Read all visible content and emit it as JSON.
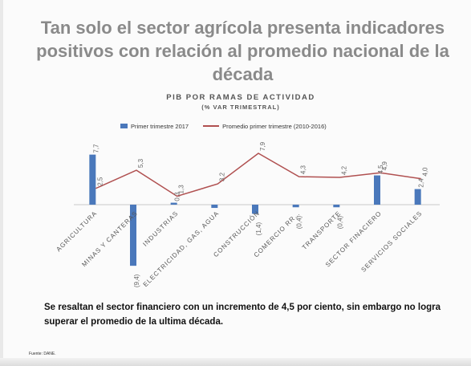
{
  "slide": {
    "title": "Tan solo el sector agrícola presenta indicadores positivos con relación al promedio nacional de la década",
    "note": "Se resaltan el sector financiero con un incremento de 4,5 por ciento, sin embargo no logra superar el promedio de la ultima década.",
    "source": "Fuente: DANE."
  },
  "chart_data": {
    "type": "bar",
    "title": "PIB POR RAMAS DE ACTIVIDAD",
    "subtitle": "(% VAR TRIMESTRAL)",
    "legend_position": "top",
    "categories": [
      "AGRICULTURA",
      "MINAS Y CANTERAS",
      "INDUSTRIAS",
      "ELECTRICIDAD, GAS, AGUA",
      "CONSTRUCCIÓN",
      "COMERCIO RR…",
      "TRANSPORTE",
      "SECTOR FINACIERO",
      "SERVICIOS SOCIALES"
    ],
    "series": [
      {
        "name": "Primer trimestre 2017",
        "type": "bar",
        "color": "#4a78bb",
        "values": [
          7.7,
          -9.4,
          0.3,
          -0.5,
          -1.4,
          -0.4,
          -0.4,
          4.5,
          2.4
        ],
        "labels": [
          "7,7",
          "(9,4)",
          "0,3",
          "",
          "(1,4)",
          "(0,4)",
          "(0,4)",
          "4,5",
          "2,4"
        ]
      },
      {
        "name": "Promedio primer trimestre (2010-2016)",
        "type": "line",
        "color": "#b05050",
        "values": [
          2.5,
          5.3,
          1.3,
          3.2,
          7.9,
          4.3,
          4.2,
          4.9,
          4.0
        ],
        "labels": [
          "2,5",
          "5,3",
          "1,3",
          "3,2",
          "7,9",
          "4,3",
          "4,2",
          "4,9",
          "4,0"
        ]
      }
    ],
    "ylim": [
      -10,
      9
    ],
    "grid": false
  }
}
